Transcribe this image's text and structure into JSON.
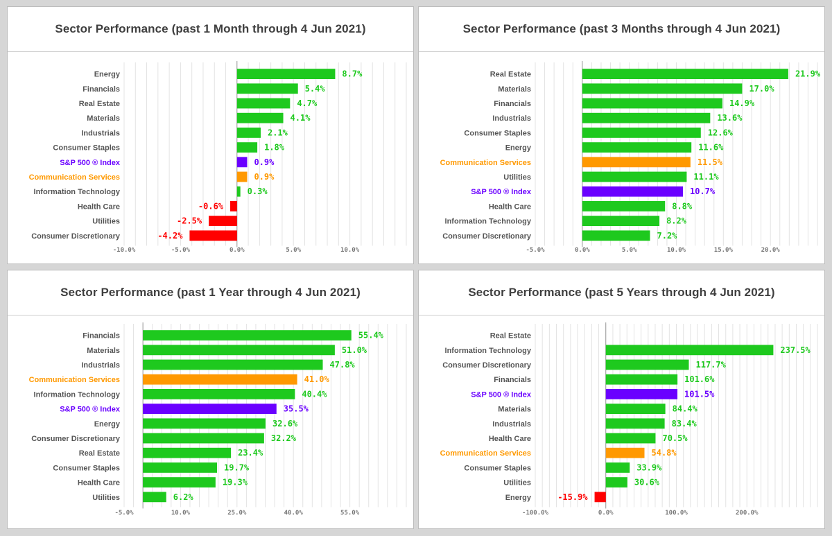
{
  "colors": {
    "positive": "#1ec91e",
    "negative": "#ff0000",
    "index": "#6a00ff",
    "communication": "#ff9900",
    "category_text": "#555555",
    "grid": "#e3e3e3",
    "zero_line": "#999999"
  },
  "chart_data": [
    {
      "type": "bar",
      "orientation": "horizontal",
      "title": "Sector Performance (past 1 Month through 4 Jun 2021)",
      "categories": [
        "Energy",
        "Financials",
        "Real Estate",
        "Materials",
        "Industrials",
        "Consumer Staples",
        "S&P 500 ® Index",
        "Communication Services",
        "Information Technology",
        "Health Care",
        "Utilities",
        "Consumer Discretionary"
      ],
      "values": [
        8.7,
        5.4,
        4.7,
        4.1,
        2.1,
        1.8,
        0.9,
        0.9,
        0.3,
        -0.6,
        -2.5,
        -4.2
      ],
      "labels": [
        "8.7%",
        "5.4%",
        "4.7%",
        "4.1%",
        "2.1%",
        "1.8%",
        "0.9%",
        "0.9%",
        "0.3%",
        "-0.6%",
        "-2.5%",
        "-4.2%"
      ],
      "xlim": [
        -10,
        15
      ],
      "ticks": [
        -10,
        -5,
        0,
        5,
        10
      ],
      "tick_labels": [
        "-10.0%",
        "-5.0%",
        "0.0%",
        "5.0%",
        "10.0%"
      ],
      "grid_step": 1,
      "grid": true
    },
    {
      "type": "bar",
      "orientation": "horizontal",
      "title": "Sector Performance (past 3 Months through 4 Jun 2021)",
      "categories": [
        "Real Estate",
        "Materials",
        "Financials",
        "Industrials",
        "Consumer Staples",
        "Energy",
        "Communication Services",
        "Utilities",
        "S&P 500 ® Index",
        "Health Care",
        "Information Technology",
        "Consumer Discretionary"
      ],
      "values": [
        21.9,
        17.0,
        14.9,
        13.6,
        12.6,
        11.6,
        11.5,
        11.1,
        10.7,
        8.8,
        8.2,
        7.2
      ],
      "labels": [
        "21.9%",
        "17.0%",
        "14.9%",
        "13.6%",
        "12.6%",
        "11.6%",
        "11.5%",
        "11.1%",
        "10.7%",
        "8.8%",
        "8.2%",
        "7.2%"
      ],
      "xlim": [
        -5,
        25
      ],
      "ticks": [
        -5,
        0,
        5,
        10,
        15,
        20
      ],
      "tick_labels": [
        "-5.0%",
        "0.0%",
        "5.0%",
        "10.0%",
        "15.0%",
        "20.0%"
      ],
      "grid_step": 1,
      "grid": true
    },
    {
      "type": "bar",
      "orientation": "horizontal",
      "title": "Sector Performance (past 1 Year through 4 Jun 2021)",
      "categories": [
        "Financials",
        "Materials",
        "Industrials",
        "Communication Services",
        "Information Technology",
        "S&P 500 ® Index",
        "Energy",
        "Consumer Discretionary",
        "Real Estate",
        "Consumer Staples",
        "Health Care",
        "Utilities"
      ],
      "values": [
        55.4,
        51.0,
        47.8,
        41.0,
        40.4,
        35.5,
        32.6,
        32.2,
        23.4,
        19.7,
        19.3,
        6.2
      ],
      "labels": [
        "55.4%",
        "51.0%",
        "47.8%",
        "41.0%",
        "40.4%",
        "35.5%",
        "32.6%",
        "32.2%",
        "23.4%",
        "19.7%",
        "19.3%",
        "6.2%"
      ],
      "xlim": [
        -5,
        70
      ],
      "ticks": [
        -5,
        10,
        25,
        40,
        55
      ],
      "tick_labels": [
        "-5.0%",
        "10.0%",
        "25.0%",
        "40.0%",
        "55.0%"
      ],
      "grid_step": 2.5,
      "grid": true
    },
    {
      "type": "bar",
      "orientation": "horizontal",
      "title": "Sector Performance (past 5 Years through 4 Jun 2021)",
      "categories": [
        "Real Estate",
        "Information Technology",
        "Consumer Discretionary",
        "Financials",
        "S&P 500 ® Index",
        "Materials",
        "Industrials",
        "Health Care",
        "Communication Services",
        "Consumer Staples",
        "Utilities",
        "Energy"
      ],
      "values": [
        null,
        237.5,
        117.7,
        101.6,
        101.5,
        84.4,
        83.4,
        70.5,
        54.8,
        33.9,
        30.6,
        -15.9
      ],
      "labels": [
        "",
        "237.5%",
        "117.7%",
        "101.6%",
        "101.5%",
        "84.4%",
        "83.4%",
        "70.5%",
        "54.8%",
        "33.9%",
        "30.6%",
        "-15.9%"
      ],
      "xlim": [
        -100,
        300
      ],
      "ticks": [
        -100,
        0,
        100,
        200
      ],
      "tick_labels": [
        "-100.0%",
        "0.0%",
        "100.0%",
        "200.0%"
      ],
      "grid_step": 10,
      "grid": true
    }
  ]
}
